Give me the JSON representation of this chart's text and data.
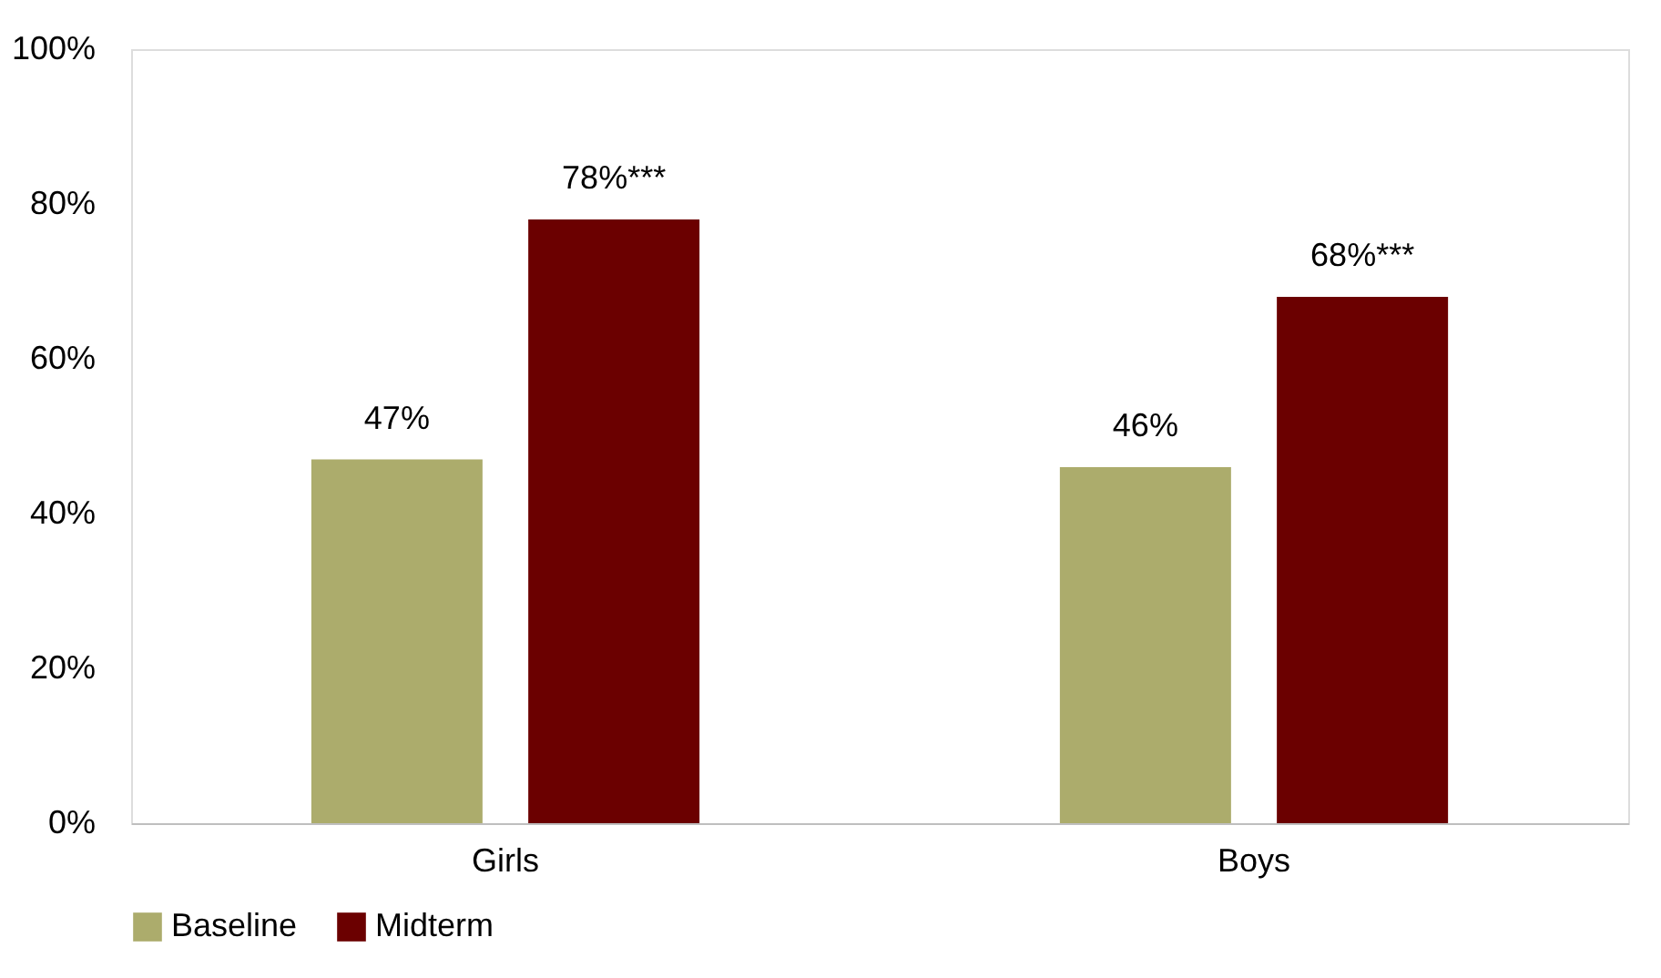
{
  "chart_data": {
    "type": "bar",
    "categories": [
      "Girls",
      "Boys"
    ],
    "series": [
      {
        "name": "Baseline",
        "color": "#acac6c",
        "values": [
          47,
          46
        ],
        "value_labels": [
          "47%",
          "46%"
        ]
      },
      {
        "name": "Midterm",
        "color": "#6b0000",
        "values": [
          78,
          68
        ],
        "value_labels": [
          "78%***",
          "68%***"
        ]
      }
    ],
    "ylim": [
      0,
      100
    ],
    "yticks": [
      {
        "value": 0,
        "label": "0%"
      },
      {
        "value": 20,
        "label": "20%"
      },
      {
        "value": 40,
        "label": "40%"
      },
      {
        "value": 60,
        "label": "60%"
      },
      {
        "value": 80,
        "label": "80%"
      },
      {
        "value": 100,
        "label": "100%"
      }
    ],
    "grid": false,
    "legend": "bottom"
  }
}
